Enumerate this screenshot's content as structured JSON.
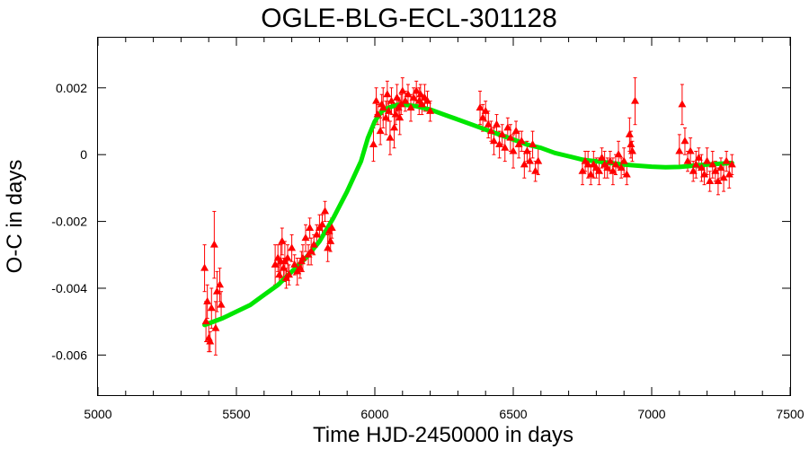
{
  "chart_data": {
    "type": "scatter",
    "title": "OGLE-BLG-ECL-301128",
    "xlabel": "Time HJD-2450000 in days",
    "ylabel": "O-C in days",
    "xlim": [
      5000,
      7500
    ],
    "ylim": [
      -0.0072,
      0.0035
    ],
    "xticks": [
      {
        "value": 5000,
        "label": "5000"
      },
      {
        "value": 5500,
        "label": "5500"
      },
      {
        "value": 6000,
        "label": "6000"
      },
      {
        "value": 6500,
        "label": "6500"
      },
      {
        "value": 7000,
        "label": "7000"
      },
      {
        "value": 7500,
        "label": "7500"
      }
    ],
    "yticks": [
      {
        "value": 0.002,
        "label": "0.002"
      },
      {
        "value": 0,
        "label": "0"
      },
      {
        "value": -0.002,
        "label": "-0.002"
      },
      {
        "value": -0.004,
        "label": "-0.004"
      },
      {
        "value": -0.006,
        "label": "-0.006"
      }
    ],
    "grid": false,
    "colors": {
      "points": "#ff0000",
      "fit": "#00e600"
    },
    "series": [
      {
        "kind": "points_with_errorbars",
        "x": [
          5385,
          5390,
          5395,
          5400,
          5405,
          5410,
          5420,
          5425,
          5430,
          5440,
          5445,
          5640,
          5650,
          5655,
          5660,
          5665,
          5670,
          5675,
          5680,
          5685,
          5690,
          5700,
          5710,
          5720,
          5730,
          5735,
          5740,
          5750,
          5760,
          5765,
          5770,
          5780,
          5790,
          5800,
          5810,
          5820,
          5830,
          5835,
          5840,
          5845,
          5995,
          6005,
          6010,
          6020,
          6025,
          6030,
          6040,
          6045,
          6050,
          6055,
          6060,
          6070,
          6075,
          6080,
          6085,
          6090,
          6095,
          6100,
          6110,
          6120,
          6130,
          6140,
          6150,
          6160,
          6165,
          6170,
          6180,
          6190,
          6200,
          6380,
          6390,
          6400,
          6410,
          6420,
          6430,
          6440,
          6450,
          6460,
          6470,
          6480,
          6490,
          6500,
          6510,
          6520,
          6530,
          6540,
          6550,
          6560,
          6570,
          6580,
          6590,
          6750,
          6760,
          6770,
          6780,
          6790,
          6800,
          6810,
          6820,
          6830,
          6840,
          6850,
          6860,
          6870,
          6880,
          6890,
          6900,
          6910,
          6920,
          6925,
          6930,
          6940,
          7100,
          7110,
          7120,
          7130,
          7140,
          7150,
          7160,
          7170,
          7180,
          7190,
          7200,
          7210,
          7220,
          7230,
          7240,
          7250,
          7260,
          7270,
          7280,
          7290
        ],
        "y": [
          -0.0034,
          -0.005,
          -0.0044,
          -0.0055,
          -0.0056,
          -0.0046,
          -0.0027,
          -0.0052,
          -0.0041,
          -0.0039,
          -0.0045,
          -0.0033,
          -0.0031,
          -0.0036,
          -0.0032,
          -0.0026,
          -0.0034,
          -0.0032,
          -0.0037,
          -0.0031,
          -0.0036,
          -0.0028,
          -0.0033,
          -0.0035,
          -0.0034,
          -0.0032,
          -0.0031,
          -0.0025,
          -0.003,
          -0.0022,
          -0.0029,
          -0.0027,
          -0.0024,
          -0.0022,
          -0.0021,
          -0.0017,
          -0.0028,
          -0.0023,
          -0.0026,
          -0.0022,
          0.0003,
          0.0016,
          0.0012,
          0.0007,
          0.0015,
          0.0014,
          0.0011,
          0.0018,
          0.0013,
          0.0005,
          0.0016,
          0.0008,
          0.0012,
          0.0017,
          0.0014,
          0.0011,
          0.0015,
          0.0019,
          0.0016,
          0.0018,
          0.0014,
          0.0017,
          0.0019,
          0.0016,
          0.0018,
          0.0015,
          0.0017,
          0.0016,
          0.0013,
          0.0014,
          0.0011,
          0.0013,
          0.0009,
          0.0007,
          0.0004,
          0.0009,
          0.0003,
          0.0006,
          0.0002,
          0.0008,
          0.0005,
          0.0001,
          0.0007,
          0.0003,
          0.0004,
          -0.0003,
          0.0001,
          -0.0002,
          0.0003,
          -0.0005,
          -0.0002,
          -0.0005,
          -0.0002,
          -0.0003,
          -0.0006,
          -0.0003,
          -0.0004,
          -0.0005,
          -0.0001,
          -0.0003,
          -0.0004,
          -0.0002,
          -0.0005,
          -0.0003,
          0.0,
          -0.0004,
          -0.0002,
          -0.0006,
          0.0006,
          0.0003,
          0.0001,
          0.0016,
          0.0001,
          0.0015,
          0.0004,
          -0.0002,
          0.0001,
          -0.0005,
          -0.0003,
          -0.0001,
          -0.0004,
          -0.0006,
          -0.0002,
          -0.0008,
          -0.0003,
          -0.0005,
          -0.0008,
          -0.0004,
          -0.0007,
          -0.0002,
          -0.0006,
          -0.0003
        ],
        "err": [
          0.0007,
          0.0006,
          0.0005,
          0.0004,
          0.0003,
          0.0006,
          0.001,
          0.0008,
          0.0006,
          0.0005,
          0.0004,
          0.0006,
          0.0004,
          0.0003,
          0.0005,
          0.0004,
          0.0003,
          0.0006,
          0.0003,
          0.0004,
          0.0003,
          0.0004,
          0.0003,
          0.0004,
          0.0003,
          0.0003,
          0.0004,
          0.0004,
          0.0003,
          0.0003,
          0.0004,
          0.0003,
          0.0003,
          0.0004,
          0.0003,
          0.0003,
          0.0004,
          0.0003,
          0.0003,
          0.0003,
          0.0005,
          0.0004,
          0.0003,
          0.0004,
          0.0003,
          0.0006,
          0.0005,
          0.0004,
          0.0003,
          0.0005,
          0.0004,
          0.0006,
          0.0003,
          0.0004,
          0.0003,
          0.0005,
          0.0003,
          0.0004,
          0.0003,
          0.0003,
          0.0004,
          0.0003,
          0.0003,
          0.0004,
          0.0003,
          0.0003,
          0.0004,
          0.0003,
          0.0003,
          0.0005,
          0.0004,
          0.0003,
          0.0004,
          0.0003,
          0.0004,
          0.0003,
          0.0004,
          0.0003,
          0.0004,
          0.0003,
          0.0004,
          0.0005,
          0.0003,
          0.0004,
          0.0003,
          0.0004,
          0.0003,
          0.0003,
          0.0004,
          0.0003,
          0.0004,
          0.0004,
          0.0003,
          0.0004,
          0.0003,
          0.0004,
          0.0003,
          0.0004,
          0.0003,
          0.0004,
          0.0003,
          0.0003,
          0.0004,
          0.0003,
          0.0004,
          0.0003,
          0.0004,
          0.0003,
          0.0005,
          0.0004,
          0.0003,
          0.0007,
          0.0005,
          0.0006,
          0.0004,
          0.0003,
          0.0004,
          0.0003,
          0.0004,
          0.0003,
          0.0004,
          0.0003,
          0.0004,
          0.0003,
          0.0004,
          0.0003,
          0.0004,
          0.0003,
          0.0004,
          0.0003,
          0.0004,
          0.0003
        ]
      },
      {
        "kind": "fit_line",
        "x": [
          5385,
          5450,
          5500,
          5550,
          5600,
          5650,
          5700,
          5750,
          5800,
          5850,
          5900,
          5950,
          5975,
          6000,
          6025,
          6050,
          6075,
          6100,
          6150,
          6200,
          6250,
          6300,
          6350,
          6400,
          6450,
          6500,
          6550,
          6600,
          6650,
          6700,
          6750,
          6800,
          6850,
          6900,
          6950,
          7000,
          7050,
          7100,
          7150,
          7200,
          7250,
          7290
        ],
        "y": [
          -0.0051,
          -0.0049,
          -0.0047,
          -0.0045,
          -0.0042,
          -0.0039,
          -0.0035,
          -0.0031,
          -0.0026,
          -0.0019,
          -0.0011,
          -0.0002,
          0.0005,
          0.001,
          0.0013,
          0.0014,
          0.00148,
          0.0015,
          0.00145,
          0.00135,
          0.0012,
          0.00105,
          0.0009,
          0.00075,
          0.0006,
          0.00045,
          0.0003,
          0.0002,
          5e-05,
          -5e-05,
          -0.00015,
          -0.0002,
          -0.00025,
          -0.0003,
          -0.00033,
          -0.00036,
          -0.00038,
          -0.00037,
          -0.00033,
          -0.0003,
          -0.00027,
          -0.00025
        ]
      }
    ]
  }
}
